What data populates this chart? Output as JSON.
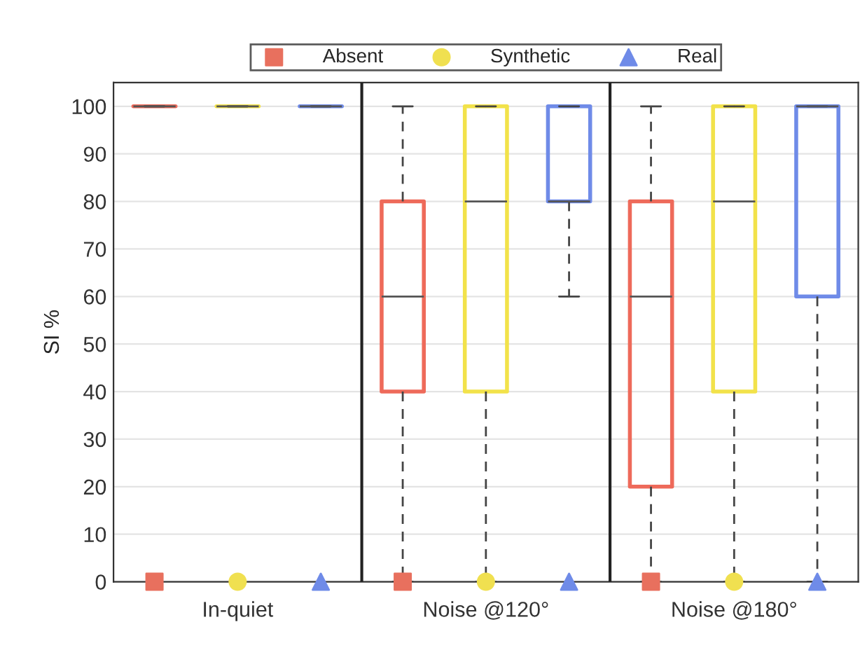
{
  "chart_data": {
    "type": "box",
    "ylabel": "SI %",
    "categories": [
      "In-quiet",
      "Noise @120°",
      "Noise @180°"
    ],
    "ylim": [
      0,
      105
    ],
    "yticks": [
      0,
      10,
      20,
      30,
      40,
      50,
      60,
      70,
      80,
      90,
      100
    ],
    "grid": "y",
    "legend": "top",
    "line_style": "dashed",
    "series": [
      {
        "color": "#ee6a5a",
        "boxes": [
          {
            "low": 100,
            "q1": 100,
            "median": 100,
            "q3": 100,
            "high": 100
          },
          {
            "low": 0,
            "q1": 40,
            "median": 60,
            "q3": 80,
            "high": 100
          },
          {
            "low": 0,
            "q1": 20,
            "median": 60,
            "q3": 80,
            "high": 100
          }
        ]
      },
      {
        "color": "#f2e24a",
        "boxes": [
          {
            "low": 100,
            "q1": 100,
            "median": 100,
            "q3": 100,
            "high": 100
          },
          {
            "low": 0,
            "q1": 40,
            "median": 80,
            "q3": 100,
            "high": 100
          },
          {
            "low": 0,
            "q1": 40,
            "median": 80,
            "q3": 100,
            "high": 100
          }
        ]
      },
      {
        "color": "#6f8be8",
        "boxes": [
          {
            "low": 100,
            "q1": 100,
            "median": 100,
            "q3": 100,
            "high": 100
          },
          {
            "low": 60,
            "q1": 80,
            "median": 80,
            "q3": 100,
            "high": 100
          },
          {
            "low": 0,
            "q1": 60,
            "median": 100,
            "q3": 100,
            "high": 100
          }
        ]
      },
      {
        "type": "scatter",
        "name": "Absent",
        "color": "#e8705e",
        "marker": "square",
        "x": [
          "In-quiet",
          "Noise @120°",
          "Noise @180°"
        ],
        "values": [
          0,
          0,
          0
        ]
      },
      {
        "type": "scatter",
        "name": "Synthetic",
        "color": "#f0e050",
        "marker": "circle",
        "x": [
          "In-quiet",
          "Noise @120°",
          "Noise @180°"
        ],
        "values": [
          0,
          0,
          0
        ]
      },
      {
        "type": "scatter",
        "name": "Real",
        "color": "#6f8be8",
        "marker": "triangle",
        "x": [
          "In-quiet",
          "Noise @120°",
          "Noise @180°"
        ],
        "values": [
          0,
          0,
          0
        ]
      }
    ]
  }
}
